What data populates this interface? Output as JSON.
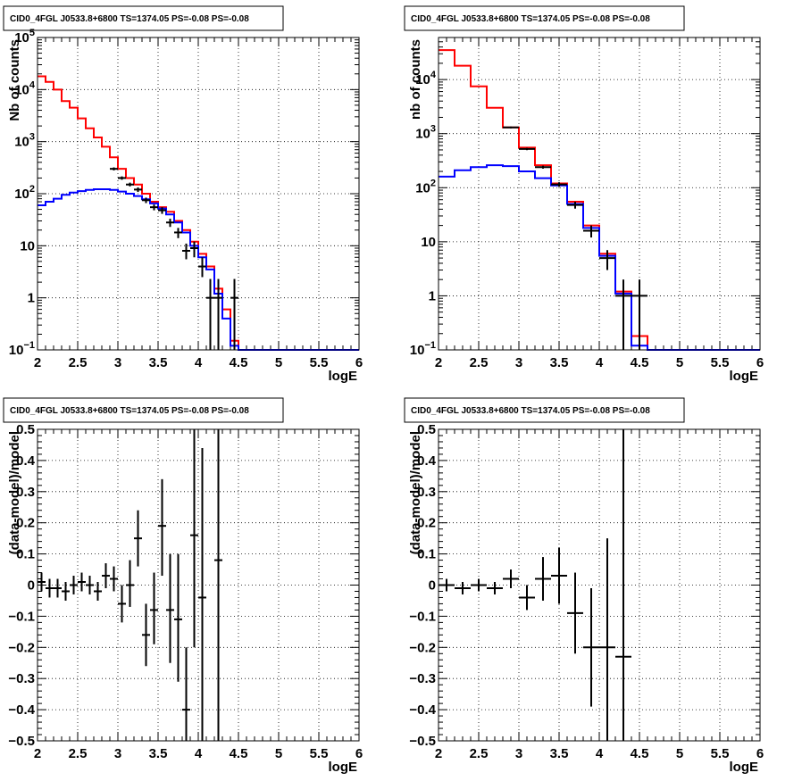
{
  "chart_data": [
    {
      "type": "line",
      "title": "CID0_4FGL J0533.8+6800 TS=1374.05 PS=-0.08 PS=-0.08",
      "xlabel": "logE",
      "ylabel": "Nb of counts",
      "xlim": [
        2,
        6
      ],
      "ylim": [
        0.1,
        100000
      ],
      "yscale": "log",
      "grid": true,
      "x_ticks": [
        "2",
        "2.5",
        "3",
        "3.5",
        "4",
        "4.5",
        "5",
        "5.5",
        "6"
      ],
      "y_ticks": [
        {
          "v": 0.1,
          "base": "10",
          "exp": "−1"
        },
        {
          "v": 1,
          "label": "1"
        },
        {
          "v": 10,
          "label": "10"
        },
        {
          "v": 100,
          "base": "10",
          "exp": "2"
        },
        {
          "v": 1000,
          "base": "10",
          "exp": "3"
        },
        {
          "v": 10000,
          "base": "10",
          "exp": "4"
        },
        {
          "v": 100000,
          "base": "10",
          "exp": "5"
        }
      ],
      "bin_edges": [
        2.0,
        2.1,
        2.2,
        2.3,
        2.4,
        2.5,
        2.6,
        2.7,
        2.8,
        2.9,
        3.0,
        3.1,
        3.2,
        3.3,
        3.4,
        3.5,
        3.6,
        3.7,
        3.8,
        3.9,
        4.0,
        4.1,
        4.2,
        4.3,
        4.4,
        4.5,
        4.6,
        4.7,
        4.8,
        4.9,
        5.0,
        5.1,
        5.2,
        5.3,
        5.4,
        5.5,
        5.6,
        5.7,
        5.8,
        5.9,
        6.0
      ],
      "series": [
        {
          "color": "#ff0000",
          "values": [
            18000,
            14000,
            10000,
            6000,
            4500,
            2800,
            1800,
            1200,
            800,
            500,
            300,
            200,
            150,
            100,
            70,
            55,
            45,
            30,
            20,
            12,
            7,
            4,
            1.5,
            0.6,
            0.15,
            0.1,
            0.1,
            0.1,
            0.1,
            0.1,
            0.1,
            0.1,
            0.1,
            0.1,
            0.1,
            0.1,
            0.1,
            0.1,
            0.1,
            0.1
          ]
        },
        {
          "color": "#0000ff",
          "values": [
            60,
            70,
            80,
            95,
            105,
            112,
            118,
            122,
            122,
            118,
            110,
            100,
            90,
            78,
            65,
            52,
            40,
            28,
            18,
            10,
            6,
            3.5,
            1.2,
            0.4,
            0.12,
            0.1,
            0.1,
            0.1,
            0.1,
            0.1,
            0.1,
            0.1,
            0.1,
            0.1,
            0.1,
            0.1,
            0.1,
            0.1,
            0.1,
            0.1
          ]
        }
      ],
      "points": [
        {
          "x": 2.95,
          "y": 300,
          "xerr": 0.05,
          "ylo": 280,
          "yhi": 320
        },
        {
          "x": 3.05,
          "y": 200,
          "xerr": 0.05,
          "ylo": 185,
          "yhi": 215
        },
        {
          "x": 3.15,
          "y": 150,
          "xerr": 0.05,
          "ylo": 138,
          "yhi": 163
        },
        {
          "x": 3.25,
          "y": 120,
          "xerr": 0.05,
          "ylo": 108,
          "yhi": 132
        },
        {
          "x": 3.35,
          "y": 75,
          "xerr": 0.05,
          "ylo": 66,
          "yhi": 84
        },
        {
          "x": 3.45,
          "y": 55,
          "xerr": 0.05,
          "ylo": 48,
          "yhi": 62
        },
        {
          "x": 3.55,
          "y": 48,
          "xerr": 0.05,
          "ylo": 41,
          "yhi": 55
        },
        {
          "x": 3.65,
          "y": 28,
          "xerr": 0.05,
          "ylo": 23,
          "yhi": 33
        },
        {
          "x": 3.75,
          "y": 18,
          "xerr": 0.05,
          "ylo": 14,
          "yhi": 22
        },
        {
          "x": 3.85,
          "y": 8,
          "xerr": 0.05,
          "ylo": 5.5,
          "yhi": 11
        },
        {
          "x": 3.95,
          "y": 9,
          "xerr": 0.05,
          "ylo": 6,
          "yhi": 12
        },
        {
          "x": 4.05,
          "y": 4,
          "xerr": 0.05,
          "ylo": 2.5,
          "yhi": 6
        },
        {
          "x": 4.15,
          "y": 1,
          "xerr": 0.05,
          "ylo": 0.1,
          "yhi": 2.3
        },
        {
          "x": 4.25,
          "y": 1,
          "xerr": 0.05,
          "ylo": 0.1,
          "yhi": 2.3
        },
        {
          "x": 4.45,
          "y": 1,
          "xerr": 0.05,
          "ylo": 0.1,
          "yhi": 2.3
        }
      ]
    },
    {
      "type": "line",
      "title": "CID0_4FGL J0533.8+6800 TS=1374.05 PS=-0.08 PS=-0.08",
      "xlabel": "logE",
      "ylabel": "nb of counts",
      "xlim": [
        2,
        6
      ],
      "ylim": [
        0.1,
        60000
      ],
      "yscale": "log",
      "grid": true,
      "x_ticks": [
        "2",
        "2.5",
        "3",
        "3.5",
        "4",
        "4.5",
        "5",
        "5.5",
        "6"
      ],
      "y_ticks": [
        {
          "v": 0.1,
          "base": "10",
          "exp": "−1"
        },
        {
          "v": 1,
          "label": "1"
        },
        {
          "v": 10,
          "label": "10"
        },
        {
          "v": 100,
          "base": "10",
          "exp": "2"
        },
        {
          "v": 1000,
          "base": "10",
          "exp": "3"
        },
        {
          "v": 10000,
          "base": "10",
          "exp": "4"
        }
      ],
      "bin_edges": [
        2.0,
        2.2,
        2.4,
        2.6,
        2.8,
        3.0,
        3.2,
        3.4,
        3.6,
        3.8,
        4.0,
        4.2,
        4.4,
        4.6,
        4.8,
        5.0,
        5.2,
        5.4,
        5.6,
        5.8,
        6.0
      ],
      "series": [
        {
          "color": "#ff0000",
          "values": [
            35000,
            18000,
            7500,
            3000,
            1300,
            550,
            260,
            120,
            55,
            20,
            6,
            1.2,
            0.18,
            0.1,
            0.1,
            0.1,
            0.1,
            0.1,
            0.1,
            0.1
          ]
        },
        {
          "color": "#0000ff",
          "values": [
            160,
            210,
            240,
            260,
            250,
            200,
            150,
            110,
            50,
            18,
            5.5,
            1.1,
            0.12,
            0.1,
            0.1,
            0.1,
            0.1,
            0.1,
            0.1,
            0.1
          ]
        }
      ],
      "points": [
        {
          "x": 2.9,
          "y": 1300,
          "xerr": 0.1,
          "ylo": 1250,
          "yhi": 1350
        },
        {
          "x": 3.1,
          "y": 520,
          "xerr": 0.1,
          "ylo": 495,
          "yhi": 545
        },
        {
          "x": 3.3,
          "y": 240,
          "xerr": 0.1,
          "ylo": 225,
          "yhi": 255
        },
        {
          "x": 3.5,
          "y": 115,
          "xerr": 0.1,
          "ylo": 104,
          "yhi": 126
        },
        {
          "x": 3.7,
          "y": 48,
          "xerr": 0.1,
          "ylo": 41,
          "yhi": 55
        },
        {
          "x": 3.9,
          "y": 16,
          "xerr": 0.1,
          "ylo": 12,
          "yhi": 20
        },
        {
          "x": 4.1,
          "y": 5,
          "xerr": 0.1,
          "ylo": 3,
          "yhi": 7
        },
        {
          "x": 4.3,
          "y": 1,
          "xerr": 0.1,
          "ylo": 0.1,
          "yhi": 2
        },
        {
          "x": 4.5,
          "y": 1,
          "xerr": 0.1,
          "ylo": 0.1,
          "yhi": 2
        }
      ]
    },
    {
      "type": "scatter",
      "title": "CID0_4FGL J0533.8+6800 TS=1374.05 PS=-0.08 PS=-0.08",
      "xlabel": "logE",
      "ylabel": "(data-model)/model",
      "xlim": [
        2,
        6
      ],
      "ylim": [
        -0.5,
        0.5
      ],
      "yscale": "linear",
      "grid": true,
      "x_ticks": [
        "2",
        "2.5",
        "3",
        "3.5",
        "4",
        "4.5",
        "5",
        "5.5",
        "6"
      ],
      "y_ticks": [
        {
          "v": -0.5,
          "label": "−0.5"
        },
        {
          "v": -0.4,
          "label": "−0.4"
        },
        {
          "v": -0.3,
          "label": "−0.3"
        },
        {
          "v": -0.2,
          "label": "−0.2"
        },
        {
          "v": -0.1,
          "label": "−0.1"
        },
        {
          "v": 0,
          "label": "0"
        },
        {
          "v": 0.1,
          "label": "0.1"
        },
        {
          "v": 0.2,
          "label": "0.2"
        },
        {
          "v": 0.3,
          "label": "0.3"
        },
        {
          "v": 0.4,
          "label": "0.4"
        },
        {
          "v": 0.5,
          "label": "0.5"
        }
      ],
      "points": [
        {
          "x": 2.05,
          "y": 0.01,
          "xerr": 0.05,
          "ylo": -0.02,
          "yhi": 0.04
        },
        {
          "x": 2.15,
          "y": -0.01,
          "xerr": 0.05,
          "ylo": -0.04,
          "yhi": 0.02
        },
        {
          "x": 2.25,
          "y": -0.01,
          "xerr": 0.05,
          "ylo": -0.04,
          "yhi": 0.02
        },
        {
          "x": 2.35,
          "y": -0.02,
          "xerr": 0.05,
          "ylo": -0.05,
          "yhi": 0.01
        },
        {
          "x": 2.45,
          "y": 0.0,
          "xerr": 0.05,
          "ylo": -0.03,
          "yhi": 0.03
        },
        {
          "x": 2.55,
          "y": 0.01,
          "xerr": 0.05,
          "ylo": -0.02,
          "yhi": 0.04
        },
        {
          "x": 2.65,
          "y": 0.0,
          "xerr": 0.05,
          "ylo": -0.03,
          "yhi": 0.03
        },
        {
          "x": 2.75,
          "y": -0.02,
          "xerr": 0.05,
          "ylo": -0.05,
          "yhi": 0.01
        },
        {
          "x": 2.85,
          "y": 0.03,
          "xerr": 0.05,
          "ylo": -0.01,
          "yhi": 0.07
        },
        {
          "x": 2.95,
          "y": 0.02,
          "xerr": 0.05,
          "ylo": -0.02,
          "yhi": 0.06
        },
        {
          "x": 3.05,
          "y": -0.06,
          "xerr": 0.05,
          "ylo": -0.12,
          "yhi": 0.0
        },
        {
          "x": 3.15,
          "y": 0.0,
          "xerr": 0.05,
          "ylo": -0.07,
          "yhi": 0.08
        },
        {
          "x": 3.25,
          "y": 0.15,
          "xerr": 0.05,
          "ylo": 0.06,
          "yhi": 0.24
        },
        {
          "x": 3.35,
          "y": -0.16,
          "xerr": 0.05,
          "ylo": -0.26,
          "yhi": -0.06
        },
        {
          "x": 3.45,
          "y": -0.08,
          "xerr": 0.05,
          "ylo": -0.19,
          "yhi": 0.04
        },
        {
          "x": 3.55,
          "y": 0.19,
          "xerr": 0.05,
          "ylo": 0.03,
          "yhi": 0.34
        },
        {
          "x": 3.65,
          "y": -0.08,
          "xerr": 0.05,
          "ylo": -0.25,
          "yhi": 0.1
        },
        {
          "x": 3.75,
          "y": -0.11,
          "xerr": 0.05,
          "ylo": -0.31,
          "yhi": 0.1
        },
        {
          "x": 3.85,
          "y": -0.4,
          "xerr": 0.05,
          "ylo": -0.5,
          "yhi": -0.2
        },
        {
          "x": 3.95,
          "y": 0.16,
          "xerr": 0.05,
          "ylo": -0.2,
          "yhi": 0.5
        },
        {
          "x": 4.05,
          "y": -0.04,
          "xerr": 0.05,
          "ylo": -0.5,
          "yhi": 0.44
        },
        {
          "x": 4.25,
          "y": 0.08,
          "xerr": 0.05,
          "ylo": -0.5,
          "yhi": 0.5
        }
      ]
    },
    {
      "type": "scatter",
      "title": "CID0_4FGL J0533.8+6800 TS=1374.05 PS=-0.08 PS=-0.08",
      "xlabel": "logE",
      "ylabel": "(data-model)/model",
      "xlim": [
        2,
        6
      ],
      "ylim": [
        -0.5,
        0.5
      ],
      "yscale": "linear",
      "grid": true,
      "x_ticks": [
        "2",
        "2.5",
        "3",
        "3.5",
        "4",
        "4.5",
        "5",
        "5.5",
        "6"
      ],
      "y_ticks": [
        {
          "v": -0.5,
          "label": "−0.5"
        },
        {
          "v": -0.4,
          "label": "−0.4"
        },
        {
          "v": -0.3,
          "label": "−0.3"
        },
        {
          "v": -0.2,
          "label": "−0.2"
        },
        {
          "v": -0.1,
          "label": "−0.1"
        },
        {
          "v": 0,
          "label": "0"
        },
        {
          "v": 0.1,
          "label": "0.1"
        },
        {
          "v": 0.2,
          "label": "0.2"
        },
        {
          "v": 0.3,
          "label": "0.3"
        },
        {
          "v": 0.4,
          "label": "0.4"
        },
        {
          "v": 0.5,
          "label": "0.5"
        }
      ],
      "points": [
        {
          "x": 2.1,
          "y": 0.0,
          "xerr": 0.1,
          "ylo": -0.02,
          "yhi": 0.02
        },
        {
          "x": 2.3,
          "y": -0.01,
          "xerr": 0.1,
          "ylo": -0.03,
          "yhi": 0.01
        },
        {
          "x": 2.5,
          "y": 0.0,
          "xerr": 0.1,
          "ylo": -0.02,
          "yhi": 0.02
        },
        {
          "x": 2.7,
          "y": -0.01,
          "xerr": 0.1,
          "ylo": -0.03,
          "yhi": 0.01
        },
        {
          "x": 2.9,
          "y": 0.02,
          "xerr": 0.1,
          "ylo": -0.01,
          "yhi": 0.05
        },
        {
          "x": 3.1,
          "y": -0.04,
          "xerr": 0.1,
          "ylo": -0.08,
          "yhi": 0.0
        },
        {
          "x": 3.3,
          "y": 0.02,
          "xerr": 0.1,
          "ylo": -0.05,
          "yhi": 0.09
        },
        {
          "x": 3.5,
          "y": 0.03,
          "xerr": 0.1,
          "ylo": -0.06,
          "yhi": 0.12
        },
        {
          "x": 3.7,
          "y": -0.09,
          "xerr": 0.1,
          "ylo": -0.22,
          "yhi": 0.04
        },
        {
          "x": 3.9,
          "y": -0.2,
          "xerr": 0.1,
          "ylo": -0.39,
          "yhi": -0.01
        },
        {
          "x": 4.1,
          "y": -0.2,
          "xerr": 0.1,
          "ylo": -0.5,
          "yhi": 0.15
        },
        {
          "x": 4.3,
          "y": -0.23,
          "xerr": 0.1,
          "ylo": -0.5,
          "yhi": 0.5
        }
      ]
    }
  ]
}
